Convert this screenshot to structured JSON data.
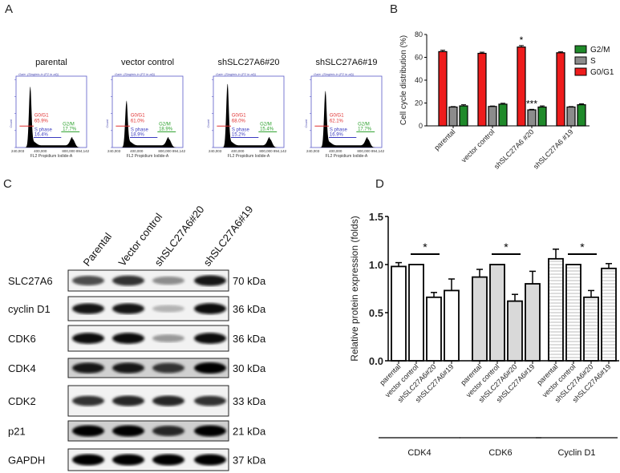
{
  "panels": {
    "a": "A",
    "b": "B",
    "c": "C",
    "d": "D"
  },
  "flow": {
    "gate_text": "Gate: (Singlets in (P2 in all))",
    "y_axis_label": "Count",
    "x_axis_label": "FL2 Propidium Iodide-A",
    "x_ticks": [
      "240,003",
      "400,000",
      "800,000 894,142"
    ],
    "phase_labels": {
      "g1": "G0/G1",
      "s": "S phase",
      "g2": "G2/M"
    },
    "colors": {
      "g1": "#e03030",
      "s": "#3a3ac0",
      "g2": "#2aa02a",
      "frame": "#5a5ac8"
    },
    "samples": [
      {
        "title": "parental",
        "g1": "65.9%",
        "s": "16.4%",
        "g2": "17.7%"
      },
      {
        "title": "vector control",
        "g1": "61.0%",
        "s": "18.9%",
        "g2": "18.9%"
      },
      {
        "title": "shSLC27A6#20",
        "g1": "68.0%",
        "s": "15.2%",
        "g2": "15.4%"
      },
      {
        "title": "shSLC27A6#19",
        "g1": "62.1%",
        "s": "16.9%",
        "g2": "17.7%"
      }
    ]
  },
  "chart_data": [
    {
      "type": "bar",
      "ylabel": "Cell cycle distribution (%)",
      "ylim": [
        0,
        80
      ],
      "yticks": [
        "0",
        "20",
        "40",
        "60",
        "80"
      ],
      "categories": [
        "parental",
        "vector control",
        "shSLC27A6 #20",
        "shSLC27A6 #19"
      ],
      "legend_position": "top-right",
      "legend": [
        "G2/M",
        "S",
        "G0/G1"
      ],
      "series": [
        {
          "name": "G0/G1",
          "color": "#ee1c1c",
          "values": [
            65,
            63.5,
            69,
            64
          ],
          "errors": [
            1.2,
            1,
            1.3,
            0.8
          ]
        },
        {
          "name": "S",
          "color": "#8c8c8c",
          "values": [
            16.5,
            17,
            14,
            16.5
          ],
          "errors": [
            0.4,
            0.4,
            0.5,
            0.4
          ]
        },
        {
          "name": "G2/M",
          "color": "#1f8a2a",
          "values": [
            17.5,
            19,
            16.5,
            18.5
          ],
          "errors": [
            1,
            0.8,
            1,
            0.8
          ]
        }
      ],
      "annotations": [
        {
          "category": "shSLC27A6 #20",
          "series": "G0/G1",
          "text": "*"
        },
        {
          "category": "shSLC27A6 #20",
          "series": "S",
          "text": "***"
        }
      ]
    },
    {
      "type": "bar",
      "ylabel": "Relative protein expression (folds)",
      "ylim": [
        0,
        1.5
      ],
      "yticks": [
        "0.0",
        "0.5",
        "1.0",
        "1.5"
      ],
      "categories": [
        "parental",
        "vector control",
        "shSLC27A6#20",
        "shSLC27A6#19"
      ],
      "groups": [
        {
          "name": "CDK4",
          "fill": "white",
          "values": [
            0.98,
            1.0,
            0.66,
            0.73
          ],
          "errors": [
            0.04,
            0,
            0.05,
            0.12
          ],
          "significance": "*"
        },
        {
          "name": "CDK6",
          "fill": "grey",
          "values": [
            0.87,
            1.0,
            0.62,
            0.8
          ],
          "errors": [
            0.08,
            0,
            0.07,
            0.13
          ],
          "significance": "*"
        },
        {
          "name": "Cyclin D1",
          "fill": "horizontal-stripes",
          "values": [
            1.06,
            1.0,
            0.66,
            0.96
          ],
          "errors": [
            0.1,
            0,
            0.07,
            0.05
          ],
          "significance": "*"
        }
      ]
    }
  ],
  "western": {
    "lanes": [
      "Parental",
      "Vector control",
      "shSLC27A6#20",
      "shSLC27A6#19"
    ],
    "rows": [
      {
        "protein": "SLC27A6",
        "size": "70 kDa",
        "band_intensity": [
          0.7,
          0.8,
          0.45,
          0.9
        ]
      },
      {
        "protein": "cyclin D1",
        "size": "36 kDa",
        "band_intensity": [
          0.9,
          0.9,
          0.3,
          0.95
        ]
      },
      {
        "protein": "CDK6",
        "size": "36 kDa",
        "band_intensity": [
          0.95,
          0.95,
          0.4,
          0.95
        ]
      },
      {
        "protein": "CDK4",
        "size": "30 kDa",
        "band_intensity": [
          0.9,
          0.9,
          0.8,
          1.0
        ]
      },
      {
        "protein": "CDK2",
        "size": "33 kDa",
        "band_intensity": [
          0.8,
          0.85,
          0.85,
          0.8
        ]
      },
      {
        "protein": "p21",
        "size": "21 kDa",
        "band_intensity": [
          1.0,
          1.0,
          0.85,
          1.0
        ]
      },
      {
        "protein": "GAPDH",
        "size": "37 kDa",
        "band_intensity": [
          1.0,
          1.0,
          1.0,
          1.0
        ]
      }
    ]
  }
}
